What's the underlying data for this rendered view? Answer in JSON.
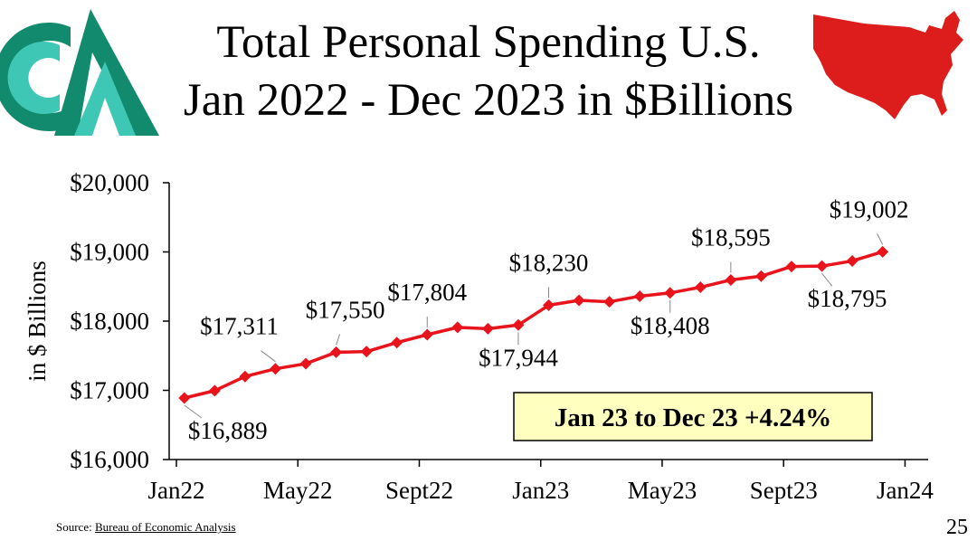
{
  "header": {
    "title_line1": "Total Personal Spending U.S.",
    "title_line2": "Jan 2022 - Dec 2023 in $Billions",
    "logo_icon": "company-logo-icon",
    "map_icon": "usa-map-icon"
  },
  "colors": {
    "series": "#e8131b",
    "accent": "#ffffc0",
    "logo_dark": "#128a6e",
    "logo_light": "#3fc7b5",
    "map": "#dd1c1c"
  },
  "chart_data": {
    "type": "line",
    "title": "Total Personal Spending U.S. Jan 2022 - Dec 2023 in $Billions",
    "ylabel": "in $ Billions",
    "xlabel": "",
    "ylim": [
      16000,
      20000
    ],
    "yticks": [
      16000,
      17000,
      18000,
      19000,
      20000
    ],
    "ytick_labels": [
      "$16,000",
      "$17,000",
      "$18,000",
      "$19,000",
      "$20,000"
    ],
    "xtick_labels": [
      "Jan22",
      "May22",
      "Sept22",
      "Jan23",
      "May23",
      "Sept23",
      "Jan24"
    ],
    "xtick_positions": [
      0,
      4,
      8,
      12,
      16,
      20,
      24
    ],
    "x": [
      "Jan22",
      "Feb22",
      "Mar22",
      "Apr22",
      "May22",
      "Jun22",
      "Jul22",
      "Aug22",
      "Sep22",
      "Oct22",
      "Nov22",
      "Dec22",
      "Jan23",
      "Feb23",
      "Mar23",
      "Apr23",
      "May23",
      "Jun23",
      "Jul23",
      "Aug23",
      "Sep23",
      "Oct23",
      "Nov23",
      "Dec23"
    ],
    "series": [
      {
        "name": "Total Personal Spending",
        "values": [
          16889,
          16995,
          17200,
          17311,
          17385,
          17550,
          17560,
          17690,
          17804,
          17910,
          17890,
          17944,
          18230,
          18300,
          18280,
          18360,
          18408,
          18490,
          18595,
          18650,
          18790,
          18795,
          18870,
          19002
        ]
      }
    ],
    "data_labels": [
      {
        "index": 0,
        "text": "$16,889"
      },
      {
        "index": 3,
        "text": "$17,311"
      },
      {
        "index": 5,
        "text": "$17,550"
      },
      {
        "index": 8,
        "text": "$17,804"
      },
      {
        "index": 11,
        "text": "$17,944"
      },
      {
        "index": 12,
        "text": "$18,230"
      },
      {
        "index": 16,
        "text": "$18,408"
      },
      {
        "index": 18,
        "text": "$18,595"
      },
      {
        "index": 21,
        "text": "$18,795"
      },
      {
        "index": 23,
        "text": "$19,002"
      }
    ],
    "annotation": "Jan 23 to Dec 23 +4.24%"
  },
  "footer": {
    "source_prefix": "Source: ",
    "source_link": "Bureau of Economic Analysis",
    "page_number": "25"
  }
}
